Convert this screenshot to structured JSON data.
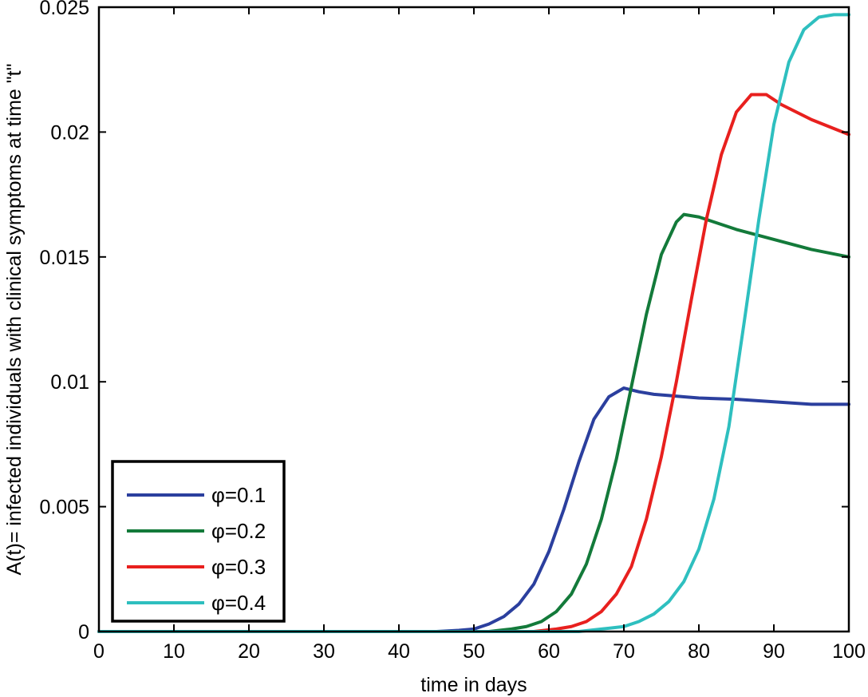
{
  "chart_data": {
    "type": "line",
    "title": "",
    "xlabel": "time in days",
    "ylabel": "A(t)= infected individuals with clinical symptoms at time \"t\"",
    "xlim": [
      0,
      100
    ],
    "ylim": [
      0,
      0.025
    ],
    "xticks": [
      0,
      10,
      20,
      30,
      40,
      50,
      60,
      70,
      80,
      90,
      100
    ],
    "xtick_labels": [
      "0",
      "10",
      "20",
      "30",
      "40",
      "50",
      "60",
      "70",
      "80",
      "90",
      "100"
    ],
    "yticks": [
      0,
      0.005,
      0.01,
      0.015,
      0.02,
      0.025
    ],
    "ytick_labels": [
      "0",
      "0.005",
      "0.01",
      "0.015",
      "0.02",
      "0.025"
    ],
    "grid": false,
    "legend_position": "bottom-left",
    "series": [
      {
        "name": "φ=0.1",
        "color": "#2b3f9e",
        "points": [
          [
            0,
            0
          ],
          [
            45,
            0
          ],
          [
            48,
            5e-05
          ],
          [
            50,
            0.0001
          ],
          [
            52,
            0.0003
          ],
          [
            54,
            0.0006
          ],
          [
            56,
            0.0011
          ],
          [
            58,
            0.0019
          ],
          [
            60,
            0.0032
          ],
          [
            62,
            0.0049
          ],
          [
            64,
            0.0068
          ],
          [
            66,
            0.0085
          ],
          [
            68,
            0.0094
          ],
          [
            70,
            0.00975
          ],
          [
            72,
            0.0096
          ],
          [
            74,
            0.0095
          ],
          [
            76,
            0.00945
          ],
          [
            78,
            0.0094
          ],
          [
            80,
            0.00935
          ],
          [
            85,
            0.0093
          ],
          [
            90,
            0.0092
          ],
          [
            95,
            0.0091
          ],
          [
            100,
            0.0091
          ]
        ]
      },
      {
        "name": "φ=0.2",
        "color": "#137a3a",
        "points": [
          [
            0,
            0
          ],
          [
            52,
            0
          ],
          [
            55,
            0.0001
          ],
          [
            57,
            0.0002
          ],
          [
            59,
            0.0004
          ],
          [
            61,
            0.0008
          ],
          [
            63,
            0.0015
          ],
          [
            65,
            0.0027
          ],
          [
            67,
            0.0045
          ],
          [
            69,
            0.0069
          ],
          [
            71,
            0.0098
          ],
          [
            73,
            0.0127
          ],
          [
            75,
            0.0151
          ],
          [
            77,
            0.0164
          ],
          [
            78,
            0.0167
          ],
          [
            80,
            0.0166
          ],
          [
            85,
            0.0161
          ],
          [
            90,
            0.0157
          ],
          [
            95,
            0.0153
          ],
          [
            100,
            0.015
          ]
        ]
      },
      {
        "name": "φ=0.3",
        "color": "#e8201e",
        "points": [
          [
            0,
            0
          ],
          [
            58,
            0
          ],
          [
            61,
            0.0001
          ],
          [
            63,
            0.0002
          ],
          [
            65,
            0.0004
          ],
          [
            67,
            0.0008
          ],
          [
            69,
            0.0015
          ],
          [
            71,
            0.0026
          ],
          [
            73,
            0.0045
          ],
          [
            75,
            0.007
          ],
          [
            77,
            0.01
          ],
          [
            79,
            0.0133
          ],
          [
            81,
            0.0165
          ],
          [
            83,
            0.0191
          ],
          [
            85,
            0.0208
          ],
          [
            87,
            0.0215
          ],
          [
            89,
            0.0215
          ],
          [
            91,
            0.0211
          ],
          [
            95,
            0.0205
          ],
          [
            100,
            0.0199
          ]
        ]
      },
      {
        "name": "φ=0.4",
        "color": "#2ebfbf",
        "points": [
          [
            0,
            0
          ],
          [
            64,
            0
          ],
          [
            67,
            0.0001
          ],
          [
            70,
            0.0002
          ],
          [
            72,
            0.0004
          ],
          [
            74,
            0.0007
          ],
          [
            76,
            0.0012
          ],
          [
            78,
            0.002
          ],
          [
            80,
            0.0033
          ],
          [
            82,
            0.0053
          ],
          [
            84,
            0.0082
          ],
          [
            86,
            0.0123
          ],
          [
            88,
            0.0165
          ],
          [
            90,
            0.0203
          ],
          [
            92,
            0.0228
          ],
          [
            94,
            0.0241
          ],
          [
            96,
            0.0246
          ],
          [
            98,
            0.0247
          ],
          [
            100,
            0.0247
          ]
        ]
      }
    ]
  }
}
